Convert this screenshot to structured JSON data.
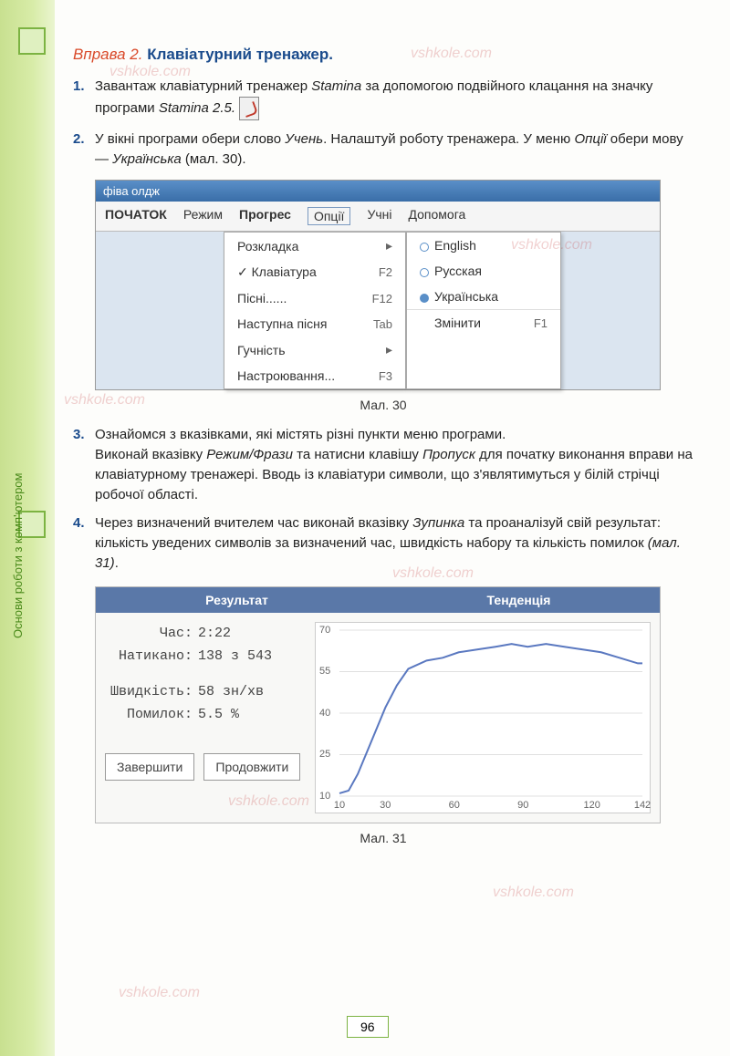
{
  "side_label": "Основи роботи з комп'ютером",
  "exercise": {
    "prefix": "Вправа 2.",
    "title": "Клавіатурний тренажер."
  },
  "steps": {
    "s1": {
      "num": "1.",
      "text_a": "Завантаж клавіатурний тренажер ",
      "prog1": "Stamina",
      "text_b": " за допомогою подвійного клацання на значку програми ",
      "prog2": "Stamina 2.5."
    },
    "s2": {
      "num": "2.",
      "text_a": "У вікні програми обери слово ",
      "w1": "Учень",
      "text_b": ". Налаштуй роботу тренажера. У меню ",
      "w2": "Опції",
      "text_c": " обери мову — ",
      "w3": "Українська",
      "text_d": " (мал. 30)."
    },
    "s3": {
      "num": "3.",
      "text_a": "Ознайомся з вказівками, які містять різні пункти меню програми.",
      "text_b": "Виконай вказівку ",
      "w1": "Режим/Фрази",
      "text_c": " та натисни клавішу ",
      "w2": "Пропуск",
      "text_d": " для початку виконання вправи на клавіатурному тренажері. Вводь із клавіатури символи, що з'являтимуться у білій стрічці робочої області."
    },
    "s4": {
      "num": "4.",
      "text_a": "Через визначений вчителем час виконай вказівку ",
      "w1": "Зупинка",
      "text_b": " та проаналізуй свій результат: кількість уведених символів за визначений час, швидкість набору та кількість помилок ",
      "w2": "(мал. 31)",
      "text_c": "."
    }
  },
  "app": {
    "title": "фіва олдж",
    "menu": {
      "start": "ПОЧАТОК",
      "mode": "Режим",
      "progress": "Прогрес",
      "options": "Опції",
      "users": "Учні",
      "help": "Допомога"
    },
    "dropdown": {
      "layout": "Розкладка",
      "keyboard": "Клавіатура",
      "keyboard_key": "F2",
      "songs": "Пісні......",
      "songs_key": "F12",
      "next_song": "Наступна пісня",
      "next_song_key": "Tab",
      "volume": "Гучність",
      "settings": "Настроювання...",
      "settings_key": "F3"
    },
    "submenu": {
      "english": "English",
      "russian": "Русская",
      "ukrainian": "Українська",
      "change": "Змінити",
      "change_key": "F1"
    }
  },
  "caption1": "Мал. 30",
  "results": {
    "header_left": "Результат",
    "header_right": "Тенденція",
    "time_label": "Час:",
    "time_val": "2:22",
    "typed_label": "Натикано:",
    "typed_val": "138 з 543",
    "speed_label": "Швидкість:",
    "speed_val": "58 зн/хв",
    "errors_label": "Помилок:",
    "errors_val": "5.5 %",
    "btn_finish": "Завершити",
    "btn_continue": "Продовжити",
    "chart": {
      "ylim": [
        10,
        70
      ],
      "yticks": [
        10,
        25,
        40,
        55,
        70
      ],
      "xlim": [
        10,
        142
      ],
      "xticks": [
        10,
        30,
        60,
        90,
        120,
        142
      ],
      "line_color": "#5a78c0",
      "grid_color": "#e0e0e0",
      "points": [
        [
          10,
          11
        ],
        [
          14,
          12
        ],
        [
          18,
          18
        ],
        [
          22,
          26
        ],
        [
          26,
          34
        ],
        [
          30,
          42
        ],
        [
          35,
          50
        ],
        [
          40,
          56
        ],
        [
          48,
          59
        ],
        [
          55,
          60
        ],
        [
          62,
          62
        ],
        [
          70,
          63
        ],
        [
          78,
          64
        ],
        [
          85,
          65
        ],
        [
          92,
          64
        ],
        [
          100,
          65
        ],
        [
          108,
          64
        ],
        [
          116,
          63
        ],
        [
          124,
          62
        ],
        [
          132,
          60
        ],
        [
          140,
          58
        ],
        [
          142,
          58
        ]
      ]
    }
  },
  "caption2": "Мал. 31",
  "page_number": "96",
  "watermark": "vshkole.com"
}
